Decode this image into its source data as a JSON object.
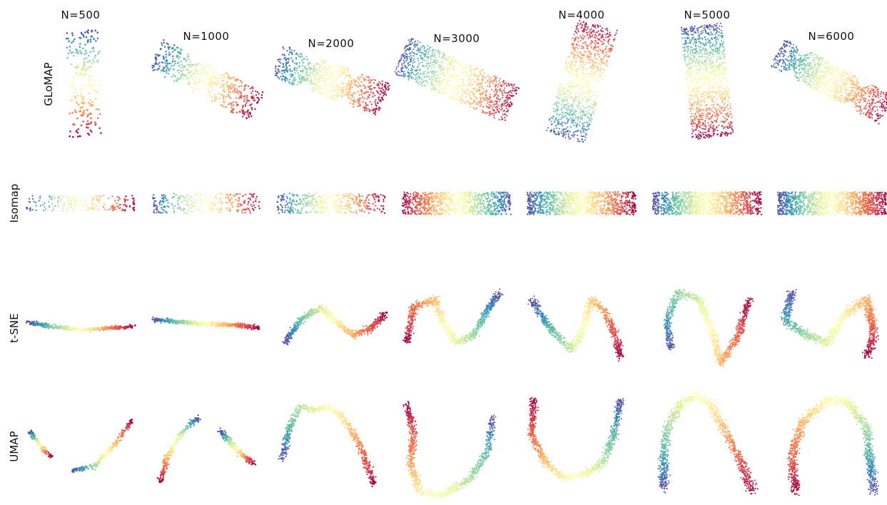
{
  "chart_data": {
    "type": "scatter",
    "description_grid": "4 embedding methods x 7 sample sizes, points colored by position along the manifold (Spectral colormap)",
    "columns": [
      "N=500",
      "N=1000",
      "N=2000",
      "N=3000",
      "N=4000",
      "N=5000",
      "N=6000"
    ],
    "rows": [
      "GLoMAP",
      "Isomap",
      "t-SNE",
      "UMAP"
    ],
    "sample_sizes": [
      500,
      1000,
      2000,
      3000,
      4000,
      5000,
      6000
    ],
    "colormap": [
      "#5e4fa2",
      "#3288bd",
      "#66c2a5",
      "#abdda4",
      "#e6f598",
      "#ffffbf",
      "#fee08b",
      "#fdae61",
      "#f46d43",
      "#d53e4f",
      "#9e0142"
    ],
    "axes_visible": false,
    "grid": false
  }
}
